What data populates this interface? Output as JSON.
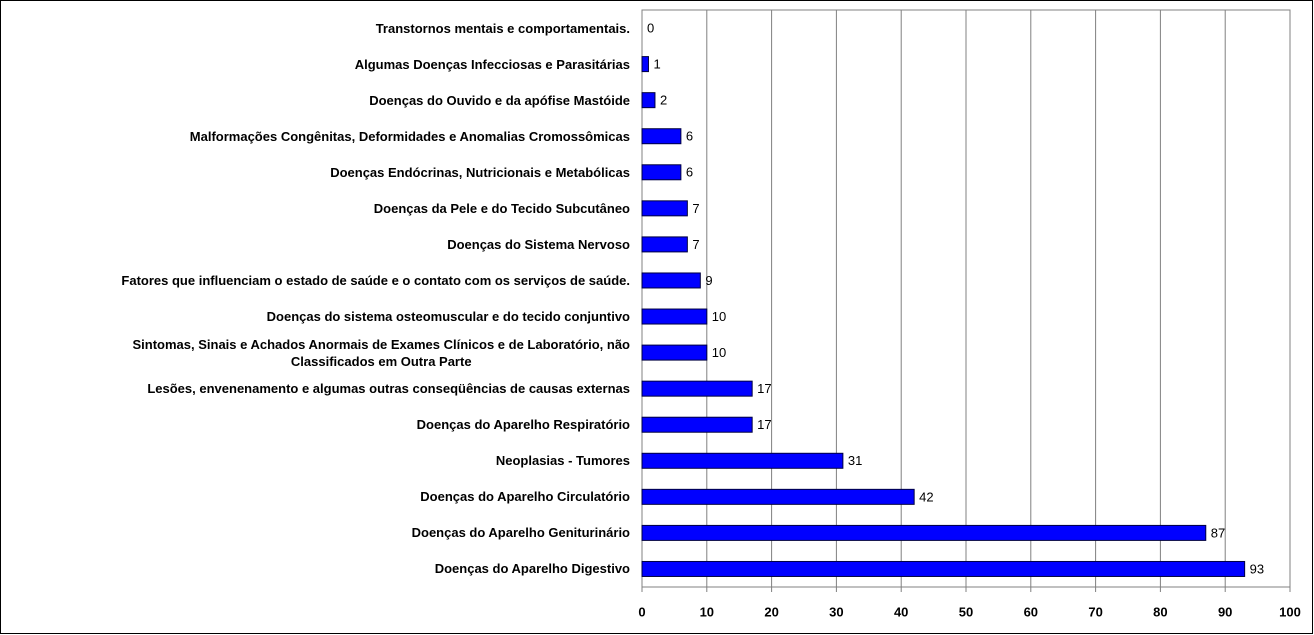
{
  "chart_data": {
    "type": "barh",
    "categories": [
      "Transtornos mentais e comportamentais.",
      "Algumas Doenças Infecciosas e Parasitárias",
      "Doenças do Ouvido e da apófise Mastóide",
      "Malformações Congênitas, Deformidades e Anomalias Cromossômicas",
      "Doenças Endócrinas, Nutricionais e Metabólicas",
      "Doenças da Pele e do Tecido Subcutâneo",
      "Doenças do Sistema Nervoso",
      "Fatores que influenciam o estado de saúde e o contato com os serviços de saúde.",
      "Doenças do sistema osteomuscular e do tecido conjuntivo",
      "Sintomas, Sinais e Achados Anormais de Exames Clínicos e de Laboratório, não\nClassificados em Outra Parte",
      "Lesões, envenenamento e algumas outras conseqüências de causas externas",
      "Doenças do Aparelho Respiratório",
      "Neoplasias - Tumores",
      "Doenças do Aparelho Circulatório",
      "Doenças do Aparelho Geniturinário",
      "Doenças do Aparelho Digestivo"
    ],
    "values": [
      0,
      1,
      2,
      6,
      6,
      7,
      7,
      9,
      10,
      10,
      17,
      17,
      31,
      42,
      87,
      93
    ],
    "color": "#0000ff",
    "xlim": [
      0,
      100
    ],
    "xticks": [
      0,
      10,
      20,
      30,
      40,
      50,
      60,
      70,
      80,
      90,
      100
    ],
    "grid": true
  }
}
